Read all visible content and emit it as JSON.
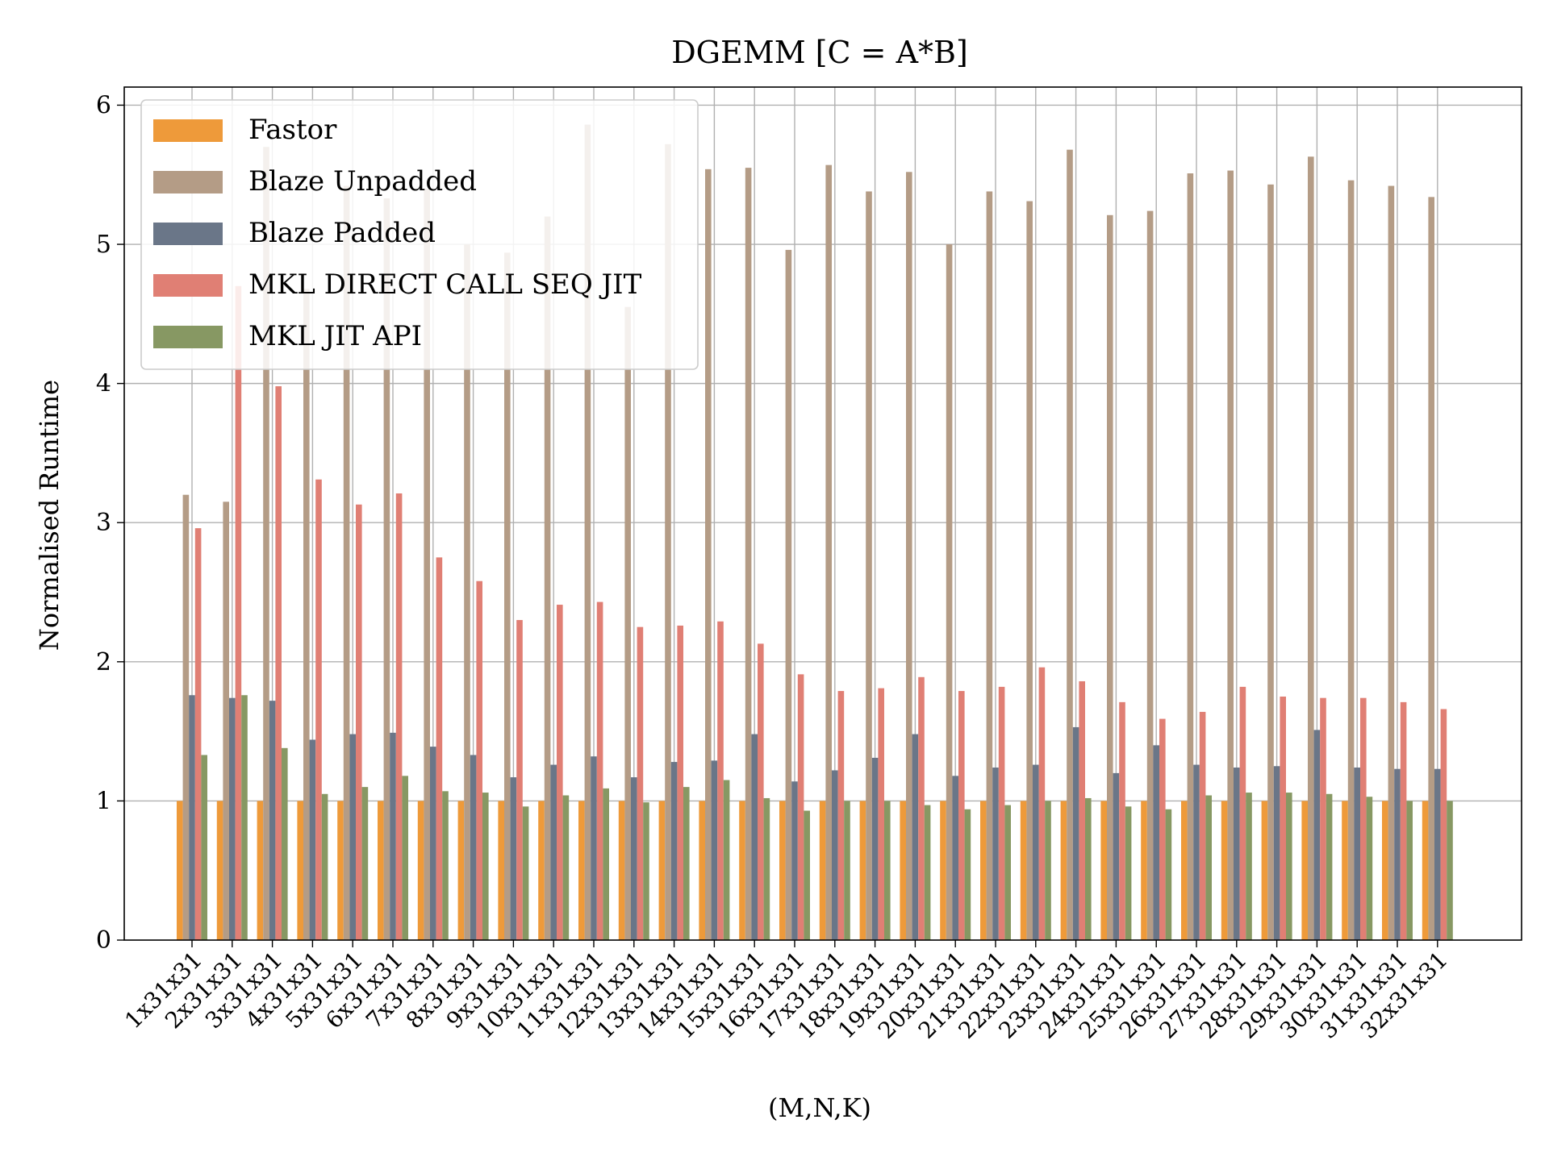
{
  "chart_data": {
    "type": "bar",
    "title": "DGEMM [C = A*B]",
    "xlabel": "(M,N,K)",
    "ylabel": "Normalised Runtime",
    "ylim": [
      0,
      6.13
    ],
    "yticks": [
      "0",
      "1",
      "2",
      "3",
      "4",
      "5",
      "6"
    ],
    "grid": true,
    "legend_position": "top-left",
    "categories": [
      "1x31x31",
      "2x31x31",
      "3x31x31",
      "4x31x31",
      "5x31x31",
      "6x31x31",
      "7x31x31",
      "8x31x31",
      "9x31x31",
      "10x31x31",
      "11x31x31",
      "12x31x31",
      "13x31x31",
      "14x31x31",
      "15x31x31",
      "16x31x31",
      "17x31x31",
      "18x31x31",
      "19x31x31",
      "20x31x31",
      "21x31x31",
      "22x31x31",
      "23x31x31",
      "24x31x31",
      "25x31x31",
      "26x31x31",
      "27x31x31",
      "28x31x31",
      "29x31x31",
      "30x31x31",
      "31x31x31",
      "32x31x31"
    ],
    "series": [
      {
        "name": "Fastor",
        "color": "#ee9a3a",
        "values": [
          1,
          1,
          1,
          1,
          1,
          1,
          1,
          1,
          1,
          1,
          1,
          1,
          1,
          1,
          1,
          1,
          1,
          1,
          1,
          1,
          1,
          1,
          1,
          1,
          1,
          1,
          1,
          1,
          1,
          1,
          1,
          1
        ]
      },
      {
        "name": "Blaze Unpadded",
        "color": "#b49c86",
        "values": [
          3.2,
          3.15,
          5.7,
          4.68,
          5.42,
          5.33,
          5.4,
          5.0,
          4.94,
          5.2,
          5.86,
          4.55,
          5.72,
          5.54,
          5.55,
          4.96,
          5.57,
          5.38,
          5.52,
          5.0,
          5.38,
          5.31,
          5.68,
          5.21,
          5.24,
          5.51,
          5.53,
          5.43,
          5.63,
          5.46,
          5.42,
          5.34
        ]
      },
      {
        "name": "Blaze Padded",
        "color": "#6a7688",
        "values": [
          1.76,
          1.74,
          1.72,
          1.44,
          1.48,
          1.49,
          1.39,
          1.33,
          1.17,
          1.26,
          1.32,
          1.17,
          1.28,
          1.29,
          1.48,
          1.14,
          1.22,
          1.31,
          1.48,
          1.18,
          1.24,
          1.26,
          1.53,
          1.2,
          1.4,
          1.26,
          1.24,
          1.25,
          1.51,
          1.24,
          1.23,
          1.23
        ]
      },
      {
        "name": "MKL DIRECT CALL SEQ JIT",
        "color": "#e07f74",
        "values": [
          2.96,
          4.7,
          3.98,
          3.31,
          3.13,
          3.21,
          2.75,
          2.58,
          2.3,
          2.41,
          2.43,
          2.25,
          2.26,
          2.29,
          2.13,
          1.91,
          1.79,
          1.81,
          1.89,
          1.79,
          1.82,
          1.96,
          1.86,
          1.71,
          1.59,
          1.64,
          1.82,
          1.75,
          1.74,
          1.74,
          1.71,
          1.66
        ]
      },
      {
        "name": "MKL JIT API",
        "color": "#879863",
        "values": [
          1.33,
          1.76,
          1.38,
          1.05,
          1.1,
          1.18,
          1.07,
          1.06,
          0.96,
          1.04,
          1.09,
          0.99,
          1.1,
          1.15,
          1.02,
          0.93,
          1.0,
          1.0,
          0.97,
          0.94,
          0.97,
          1.0,
          1.02,
          0.96,
          0.94,
          1.04,
          1.06,
          1.06,
          1.05,
          1.03,
          1.0,
          1.0
        ]
      }
    ]
  }
}
